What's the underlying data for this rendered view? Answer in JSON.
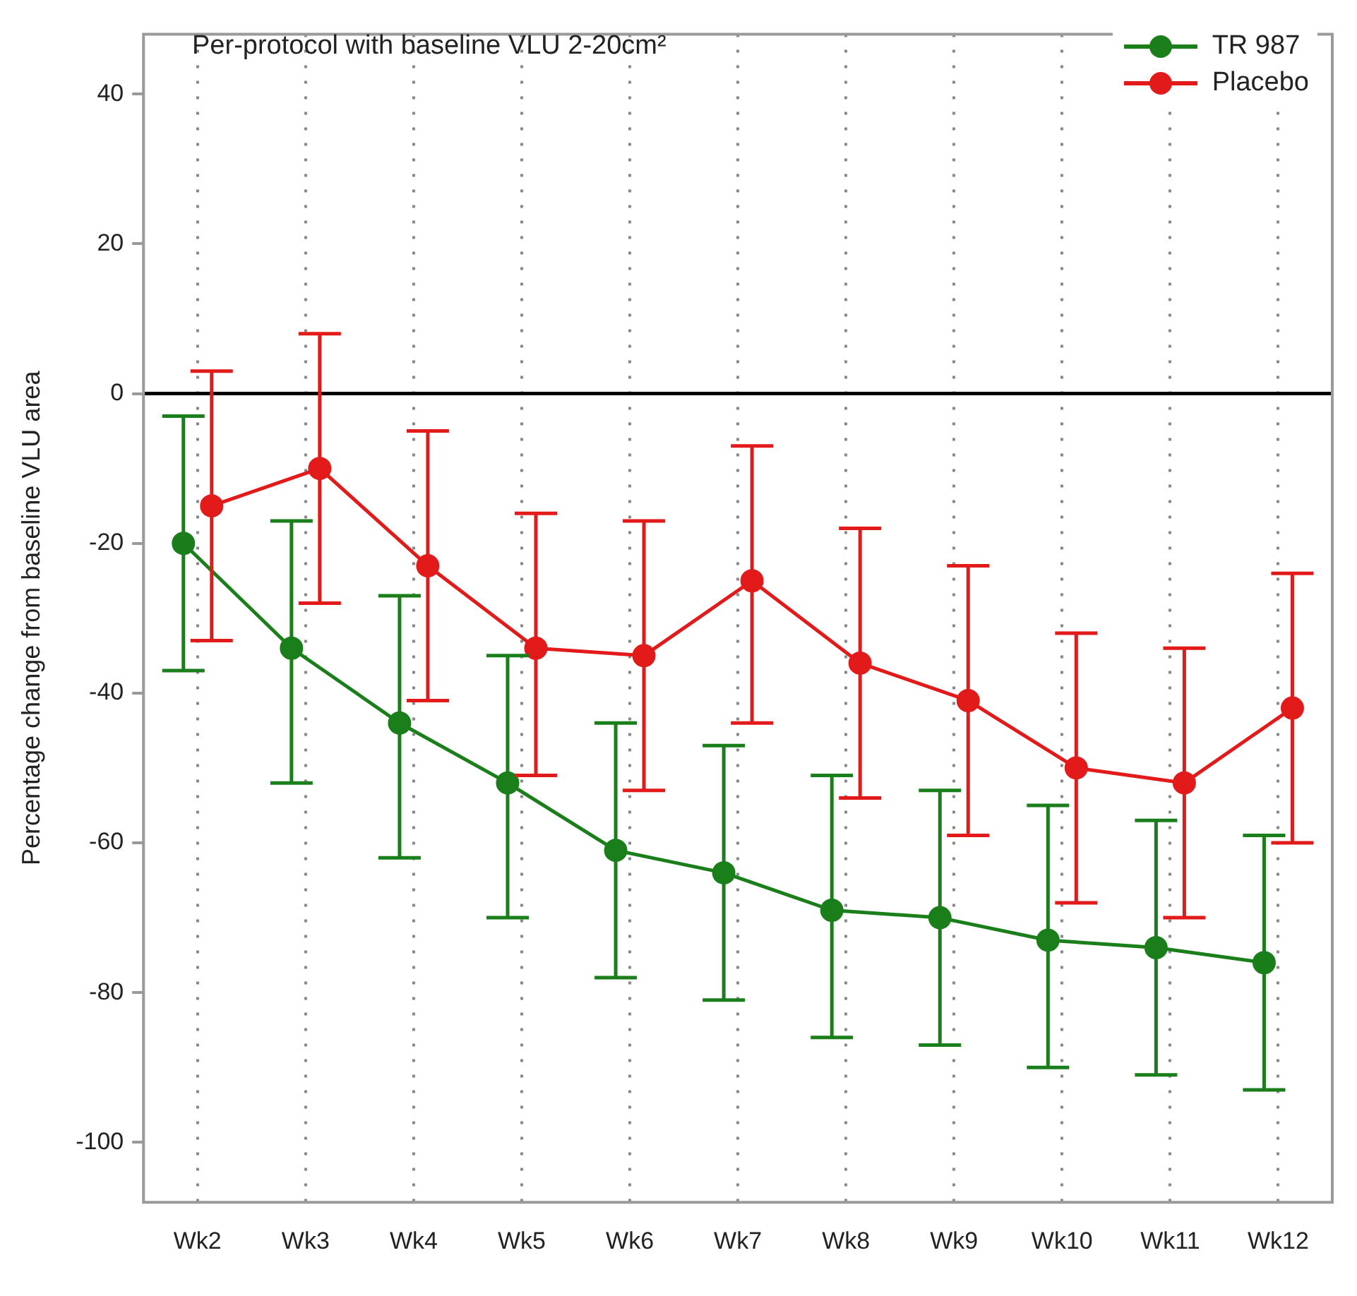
{
  "chart_data": {
    "type": "line",
    "title": "Per-protocol with baseline VLU 2-20cm²",
    "ylabel": "Percentage change from baseline VLU area",
    "categories": [
      "Wk2",
      "Wk3",
      "Wk4",
      "Wk5",
      "Wk6",
      "Wk7",
      "Wk8",
      "Wk9",
      "Wk10",
      "Wk11",
      "Wk12"
    ],
    "series": [
      {
        "name": "TR 987",
        "color": "#1a7f1a",
        "values": [
          -20,
          -34,
          -44,
          -52,
          -61,
          -64,
          -69,
          -70,
          -73,
          -74,
          -76
        ],
        "errors": [
          [
            -37,
            -3
          ],
          [
            -52,
            -17
          ],
          [
            -62,
            -27
          ],
          [
            -70,
            -35
          ],
          [
            -78,
            -44
          ],
          [
            -81,
            -47
          ],
          [
            -86,
            -51
          ],
          [
            -87,
            -53
          ],
          [
            -90,
            -55
          ],
          [
            -91,
            -57
          ],
          [
            -93,
            -59
          ]
        ]
      },
      {
        "name": "Placebo",
        "color": "#e31a1a",
        "values": [
          -15,
          -10,
          -23,
          -34,
          -35,
          -25,
          -36,
          -41,
          -50,
          -52,
          -42
        ],
        "errors": [
          [
            -33,
            3
          ],
          [
            -28,
            8
          ],
          [
            -41,
            -5
          ],
          [
            -51,
            -16
          ],
          [
            -53,
            -17
          ],
          [
            -44,
            -7
          ],
          [
            -54,
            -18
          ],
          [
            -59,
            -23
          ],
          [
            -68,
            -32
          ],
          [
            -70,
            -34
          ],
          [
            -60,
            -24
          ]
        ]
      }
    ],
    "ylim": [
      -108,
      48
    ],
    "yticks": [
      -100,
      -80,
      -60,
      -40,
      -20,
      0,
      20,
      40
    ],
    "ref_lines": [
      {
        "axis": "y",
        "value": 0,
        "color": "#000000"
      }
    ],
    "grid": "x",
    "legend": "top right",
    "marker": "circle",
    "line_style": "solid"
  }
}
